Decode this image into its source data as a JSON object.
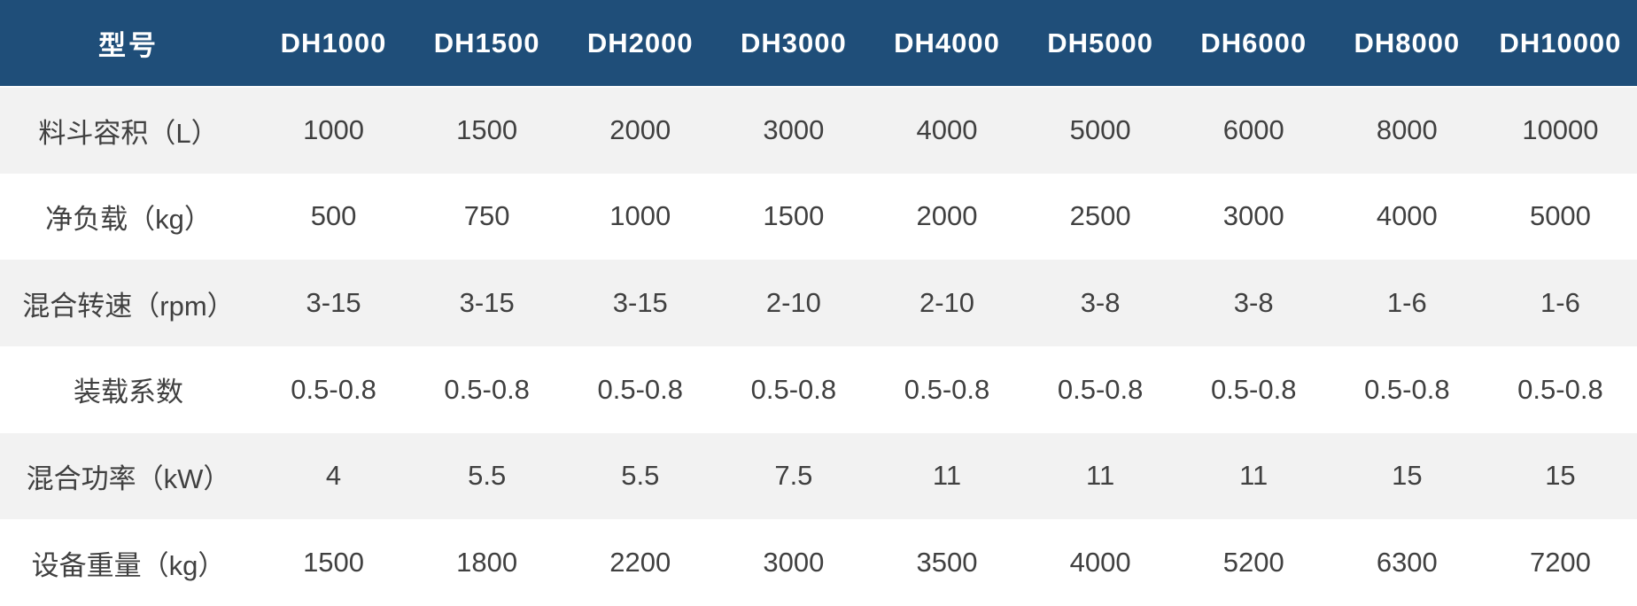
{
  "chart_data": {
    "type": "table",
    "title": "",
    "columns": [
      "型号",
      "DH1000",
      "DH1500",
      "DH2000",
      "DH3000",
      "DH4000",
      "DH5000",
      "DH6000",
      "DH8000",
      "DH10000"
    ],
    "rows": [
      [
        "料斗容积（L）",
        "1000",
        "1500",
        "2000",
        "3000",
        "4000",
        "5000",
        "6000",
        "8000",
        "10000"
      ],
      [
        "净负载（kg）",
        "500",
        "750",
        "1000",
        "1500",
        "2000",
        "2500",
        "3000",
        "4000",
        "5000"
      ],
      [
        "混合转速（rpm）",
        "3-15",
        "3-15",
        "3-15",
        "2-10",
        "2-10",
        "3-8",
        "3-8",
        "1-6",
        "1-6"
      ],
      [
        "装载系数",
        "0.5-0.8",
        "0.5-0.8",
        "0.5-0.8",
        "0.5-0.8",
        "0.5-0.8",
        "0.5-0.8",
        "0.5-0.8",
        "0.5-0.8",
        "0.5-0.8"
      ],
      [
        "混合功率（kW）",
        "4",
        "5.5",
        "5.5",
        "7.5",
        "11",
        "11",
        "11",
        "15",
        "15"
      ],
      [
        "设备重量（kg）",
        "1500",
        "1800",
        "2200",
        "3000",
        "3500",
        "4000",
        "5200",
        "6300",
        "7200"
      ]
    ],
    "layout": {
      "striped": true,
      "header_position": "top",
      "grid": "none"
    }
  },
  "table": {
    "header": {
      "corner_label": "型号",
      "models": [
        "DH1000",
        "DH1500",
        "DH2000",
        "DH3000",
        "DH4000",
        "DH5000",
        "DH6000",
        "DH8000",
        "DH10000"
      ]
    },
    "rows": [
      {
        "label": "料斗容积（L）",
        "values": [
          "1000",
          "1500",
          "2000",
          "3000",
          "4000",
          "5000",
          "6000",
          "8000",
          "10000"
        ]
      },
      {
        "label": "净负载（kg）",
        "values": [
          "500",
          "750",
          "1000",
          "1500",
          "2000",
          "2500",
          "3000",
          "4000",
          "5000"
        ]
      },
      {
        "label": "混合转速（rpm）",
        "values": [
          "3-15",
          "3-15",
          "3-15",
          "2-10",
          "2-10",
          "3-8",
          "3-8",
          "1-6",
          "1-6"
        ]
      },
      {
        "label": "装载系数",
        "values": [
          "0.5-0.8",
          "0.5-0.8",
          "0.5-0.8",
          "0.5-0.8",
          "0.5-0.8",
          "0.5-0.8",
          "0.5-0.8",
          "0.5-0.8",
          "0.5-0.8"
        ]
      },
      {
        "label": "混合功率（kW）",
        "values": [
          "4",
          "5.5",
          "5.5",
          "7.5",
          "11",
          "11",
          "11",
          "15",
          "15"
        ]
      },
      {
        "label": "设备重量（kg）",
        "values": [
          "1500",
          "1800",
          "2200",
          "3000",
          "3500",
          "4000",
          "5200",
          "6300",
          "7200"
        ]
      }
    ]
  },
  "colors": {
    "header_bg": "#1f4e79",
    "header_text": "#ffffff",
    "stripe_bg": "#f2f2f2",
    "row_bg": "#ffffff",
    "body_text": "#404040"
  }
}
